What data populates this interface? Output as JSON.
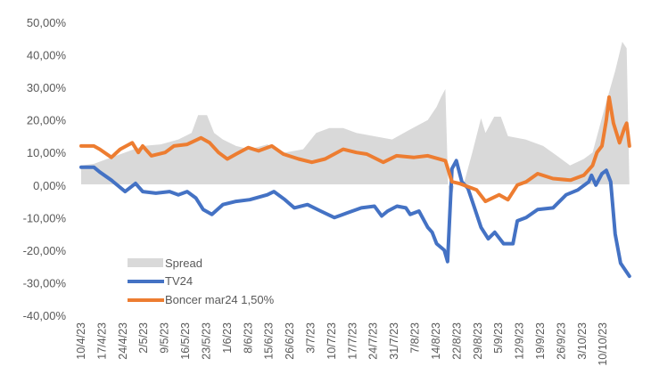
{
  "chart_data": {
    "type": "line",
    "title": "",
    "xlabel": "",
    "ylabel": "",
    "ylim": [
      -40,
      50
    ],
    "yticks": [
      "50,00%",
      "40,00%",
      "30,00%",
      "20,00%",
      "10,00%",
      "0,00%",
      "-10,00%",
      "-20,00%",
      "-30,00%",
      "-40,00%"
    ],
    "ytick_values": [
      50,
      40,
      30,
      20,
      10,
      0,
      -10,
      -20,
      -30,
      -40
    ],
    "x_labels": [
      "10/4/23",
      "17/4/23",
      "24/4/23",
      "2/5/23",
      "9/5/23",
      "16/5/23",
      "23/5/23",
      "1/6/23",
      "8/6/23",
      "15/6/23",
      "26/6/23",
      "3/7/23",
      "10/7/23",
      "17/7/23",
      "24/7/23",
      "31/7/23",
      "7/8/23",
      "14/8/23",
      "22/8/23",
      "29/8/23",
      "5/9/23",
      "12/9/23",
      "19/9/23",
      "26/9/23",
      "3/10/23",
      "10/10/23"
    ],
    "x_domain": [
      0,
      100
    ],
    "x_label_positions": [
      0,
      3.8,
      7.6,
      11.4,
      15.2,
      19.0,
      22.8,
      26.6,
      30.4,
      34.2,
      38.0,
      41.8,
      45.6,
      49.4,
      53.2,
      57.0,
      60.8,
      64.6,
      68.4,
      72.2,
      76.0,
      79.8,
      83.6,
      87.4,
      91.2,
      95.0
    ],
    "grid": false,
    "legend_position": "bottom-left-inside",
    "series": [
      {
        "name": "Spread",
        "kind": "area",
        "color": "#d9d9d9",
        "points": [
          [
            0,
            6
          ],
          [
            2.3,
            6.5
          ],
          [
            4.7,
            8
          ],
          [
            8,
            10
          ],
          [
            11.2,
            12
          ],
          [
            14.5,
            12.5
          ],
          [
            17.7,
            14
          ],
          [
            20.1,
            16
          ],
          [
            21.3,
            21.5
          ],
          [
            22.9,
            21.5
          ],
          [
            24.2,
            16
          ],
          [
            25.8,
            14
          ],
          [
            28.2,
            12
          ],
          [
            30.7,
            11
          ],
          [
            33.9,
            12.5
          ],
          [
            37.1,
            10
          ],
          [
            40.4,
            11
          ],
          [
            42.8,
            16
          ],
          [
            45.2,
            17.5
          ],
          [
            47.7,
            17.5
          ],
          [
            50.1,
            16
          ],
          [
            53.3,
            15
          ],
          [
            56.6,
            14
          ],
          [
            59.8,
            17
          ],
          [
            63.1,
            20
          ],
          [
            64.7,
            24
          ],
          [
            65.5,
            27
          ],
          [
            66.3,
            29.5
          ],
          [
            66.8,
            0
          ],
          [
            67.3,
            -5
          ],
          [
            67.9,
            0
          ],
          [
            69.6,
            0
          ],
          [
            71.2,
            10
          ],
          [
            72.8,
            20.5
          ],
          [
            73.6,
            16
          ],
          [
            75.2,
            21
          ],
          [
            76.4,
            21
          ],
          [
            77.7,
            15
          ],
          [
            80.9,
            14
          ],
          [
            84.1,
            12
          ],
          [
            86.6,
            9
          ],
          [
            89,
            6
          ],
          [
            91.5,
            8
          ],
          [
            93.1,
            10
          ],
          [
            95.5,
            25
          ],
          [
            97.2,
            35
          ],
          [
            98.5,
            44
          ],
          [
            99.3,
            42
          ],
          [
            99.8,
            0
          ]
        ]
      },
      {
        "name": "TV24",
        "kind": "line",
        "color": "#4472c4",
        "points": [
          [
            0,
            5.5
          ],
          [
            2.3,
            5.5
          ],
          [
            3.4,
            4
          ],
          [
            5.5,
            1.5
          ],
          [
            8,
            -2
          ],
          [
            9.9,
            0.5
          ],
          [
            11.2,
            -2
          ],
          [
            13.6,
            -2.5
          ],
          [
            16.1,
            -2
          ],
          [
            17.7,
            -3
          ],
          [
            19.3,
            -2
          ],
          [
            20.9,
            -4
          ],
          [
            22.2,
            -7.5
          ],
          [
            23.8,
            -9
          ],
          [
            25.8,
            -6
          ],
          [
            28.2,
            -5
          ],
          [
            30.7,
            -4.5
          ],
          [
            33.9,
            -3
          ],
          [
            35.1,
            -2
          ],
          [
            37.1,
            -4.5
          ],
          [
            38.8,
            -7
          ],
          [
            41.2,
            -6
          ],
          [
            43.6,
            -8
          ],
          [
            46.1,
            -10
          ],
          [
            48.5,
            -8.5
          ],
          [
            51,
            -7
          ],
          [
            53.4,
            -6.5
          ],
          [
            54.7,
            -9.5
          ],
          [
            55.8,
            -8
          ],
          [
            57.5,
            -6.5
          ],
          [
            59.1,
            -7
          ],
          [
            59.9,
            -9
          ],
          [
            61.5,
            -8
          ],
          [
            63.1,
            -13
          ],
          [
            63.9,
            -14.5
          ],
          [
            64.7,
            -18
          ],
          [
            66.1,
            -20
          ],
          [
            66.7,
            -23.5
          ],
          [
            67.5,
            5
          ],
          [
            68.3,
            7.5
          ],
          [
            69.3,
            1
          ],
          [
            70.4,
            -1
          ],
          [
            71.6,
            -7
          ],
          [
            72.8,
            -13
          ],
          [
            74.1,
            -16.5
          ],
          [
            75.3,
            -14.5
          ],
          [
            76.9,
            -18
          ],
          [
            78.6,
            -18
          ],
          [
            79.4,
            -11
          ],
          [
            81,
            -10
          ],
          [
            83.1,
            -7.5
          ],
          [
            85.9,
            -7
          ],
          [
            88.3,
            -3
          ],
          [
            90.4,
            -1.5
          ],
          [
            92.4,
            1
          ],
          [
            92.9,
            3
          ],
          [
            93.7,
            0
          ],
          [
            94.8,
            3.5
          ],
          [
            95.6,
            4.5
          ],
          [
            96.4,
            1
          ],
          [
            97.2,
            -15
          ],
          [
            98.2,
            -24
          ],
          [
            99.8,
            -28
          ]
        ]
      },
      {
        "name": "Boncer mar24 1,50%",
        "kind": "line",
        "color": "#ed7d31",
        "points": [
          [
            0,
            12
          ],
          [
            2.3,
            12
          ],
          [
            3.4,
            11
          ],
          [
            5.5,
            8.5
          ],
          [
            7.1,
            11
          ],
          [
            9.3,
            13
          ],
          [
            10.4,
            10
          ],
          [
            11.2,
            12
          ],
          [
            12.8,
            9
          ],
          [
            15.3,
            10
          ],
          [
            16.9,
            12
          ],
          [
            19.3,
            12.5
          ],
          [
            21.8,
            14.5
          ],
          [
            23.4,
            13
          ],
          [
            25,
            10
          ],
          [
            26.6,
            8
          ],
          [
            28.2,
            9.5
          ],
          [
            30.4,
            11.5
          ],
          [
            32.3,
            10.5
          ],
          [
            34.7,
            12
          ],
          [
            36.8,
            9.5
          ],
          [
            39.6,
            8
          ],
          [
            42,
            7
          ],
          [
            44.4,
            8
          ],
          [
            47.7,
            11
          ],
          [
            50.1,
            10
          ],
          [
            52,
            9.5
          ],
          [
            55,
            7
          ],
          [
            57.4,
            9
          ],
          [
            60.6,
            8.5
          ],
          [
            63.1,
            9
          ],
          [
            66.3,
            7.5
          ],
          [
            67.5,
            1
          ],
          [
            68.8,
            0.5
          ],
          [
            72,
            -1.5
          ],
          [
            73.6,
            -5
          ],
          [
            76.1,
            -3
          ],
          [
            77.7,
            -4.5
          ],
          [
            79.4,
            0
          ],
          [
            81,
            1
          ],
          [
            83.1,
            3.5
          ],
          [
            85.9,
            2
          ],
          [
            89.1,
            1.5
          ],
          [
            91.5,
            3
          ],
          [
            93.1,
            6
          ],
          [
            93.9,
            10
          ],
          [
            94.8,
            12
          ],
          [
            95.6,
            20
          ],
          [
            96.1,
            27
          ],
          [
            96.9,
            19
          ],
          [
            98,
            13
          ],
          [
            98.9,
            17.5
          ],
          [
            99.3,
            19
          ],
          [
            99.8,
            12
          ]
        ]
      }
    ]
  }
}
